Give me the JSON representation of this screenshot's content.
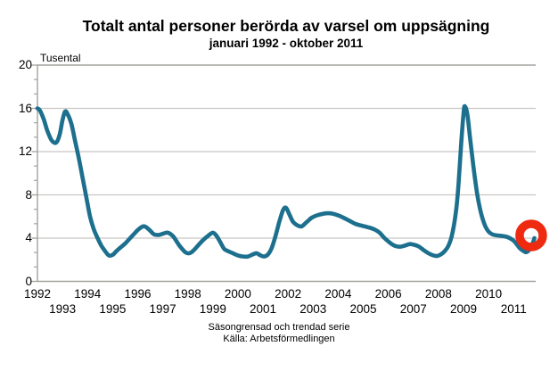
{
  "title": "Totalt antal personer berörda av varsel om uppsägning",
  "subtitle": "januari 1992 - oktober 2011",
  "unit_label": "Tusental",
  "footer": {
    "line1": "Säsongrensad och trendad serie",
    "line2": "Källa: Arbetsförmedlingen"
  },
  "colors": {
    "line": "#1d6f8e",
    "annotation": "#ee2a11",
    "grid": "#c9c7c3",
    "frame": "#a3a29e",
    "text": "#000000",
    "background": "#ffffff"
  },
  "chart_data": {
    "type": "line",
    "title": "Totalt antal personer berörda av varsel om uppsägning",
    "subtitle": "januari 1992 - oktober 2011",
    "ylabel": "Tusental",
    "xlabel": "",
    "xlim": [
      1992,
      2011.88
    ],
    "ylim": [
      0,
      20
    ],
    "y_ticks": [
      0,
      4,
      8,
      12,
      16,
      20
    ],
    "y_minor_ticks_per_interval": 2,
    "x_tick_years_row1": [
      1992,
      1994,
      1996,
      1998,
      2000,
      2002,
      2004,
      2006,
      2008,
      2010
    ],
    "x_tick_years_row2": [
      1993,
      1995,
      1997,
      1999,
      2001,
      2003,
      2005,
      2007,
      2009,
      2011
    ],
    "grid": "horizontal-major-only",
    "legend": "none",
    "series": [
      {
        "name": "Totalt antal personer berörda av varsel om uppsägning (tusental)",
        "points": [
          [
            1992.0,
            16.0
          ],
          [
            1992.1,
            15.8
          ],
          [
            1992.25,
            15.0
          ],
          [
            1992.4,
            13.9
          ],
          [
            1992.55,
            13.1
          ],
          [
            1992.7,
            12.8
          ],
          [
            1992.8,
            13.0
          ],
          [
            1992.9,
            13.7
          ],
          [
            1993.0,
            14.9
          ],
          [
            1993.1,
            15.7
          ],
          [
            1993.2,
            15.5
          ],
          [
            1993.35,
            14.6
          ],
          [
            1993.5,
            13.0
          ],
          [
            1993.65,
            11.4
          ],
          [
            1993.8,
            9.6
          ],
          [
            1993.95,
            7.8
          ],
          [
            1994.1,
            6.0
          ],
          [
            1994.25,
            4.8
          ],
          [
            1994.4,
            4.0
          ],
          [
            1994.55,
            3.3
          ],
          [
            1994.7,
            2.8
          ],
          [
            1994.85,
            2.4
          ],
          [
            1995.0,
            2.45
          ],
          [
            1995.15,
            2.8
          ],
          [
            1995.3,
            3.1
          ],
          [
            1995.5,
            3.5
          ],
          [
            1995.7,
            4.0
          ],
          [
            1995.9,
            4.5
          ],
          [
            1996.05,
            4.85
          ],
          [
            1996.25,
            5.1
          ],
          [
            1996.45,
            4.8
          ],
          [
            1996.65,
            4.35
          ],
          [
            1996.85,
            4.3
          ],
          [
            1997.0,
            4.4
          ],
          [
            1997.2,
            4.5
          ],
          [
            1997.4,
            4.2
          ],
          [
            1997.55,
            3.7
          ],
          [
            1997.7,
            3.2
          ],
          [
            1997.9,
            2.7
          ],
          [
            1998.05,
            2.6
          ],
          [
            1998.2,
            2.8
          ],
          [
            1998.4,
            3.3
          ],
          [
            1998.6,
            3.8
          ],
          [
            1998.8,
            4.2
          ],
          [
            1999.0,
            4.5
          ],
          [
            1999.15,
            4.2
          ],
          [
            1999.3,
            3.6
          ],
          [
            1999.45,
            3.0
          ],
          [
            1999.6,
            2.8
          ],
          [
            1999.8,
            2.6
          ],
          [
            2000.0,
            2.4
          ],
          [
            2000.2,
            2.3
          ],
          [
            2000.4,
            2.3
          ],
          [
            2000.6,
            2.5
          ],
          [
            2000.75,
            2.6
          ],
          [
            2000.9,
            2.4
          ],
          [
            2001.05,
            2.3
          ],
          [
            2001.2,
            2.5
          ],
          [
            2001.35,
            3.1
          ],
          [
            2001.5,
            4.2
          ],
          [
            2001.65,
            5.5
          ],
          [
            2001.8,
            6.6
          ],
          [
            2001.92,
            6.8
          ],
          [
            2002.05,
            6.2
          ],
          [
            2002.2,
            5.5
          ],
          [
            2002.4,
            5.15
          ],
          [
            2002.55,
            5.1
          ],
          [
            2002.75,
            5.5
          ],
          [
            2002.95,
            5.9
          ],
          [
            2003.15,
            6.1
          ],
          [
            2003.4,
            6.25
          ],
          [
            2003.6,
            6.3
          ],
          [
            2003.8,
            6.25
          ],
          [
            2004.0,
            6.1
          ],
          [
            2004.2,
            5.9
          ],
          [
            2004.45,
            5.6
          ],
          [
            2004.7,
            5.3
          ],
          [
            2004.95,
            5.15
          ],
          [
            2005.2,
            5.0
          ],
          [
            2005.45,
            4.8
          ],
          [
            2005.65,
            4.5
          ],
          [
            2005.85,
            4.0
          ],
          [
            2006.05,
            3.6
          ],
          [
            2006.25,
            3.3
          ],
          [
            2006.45,
            3.2
          ],
          [
            2006.65,
            3.3
          ],
          [
            2006.85,
            3.45
          ],
          [
            2007.0,
            3.4
          ],
          [
            2007.2,
            3.25
          ],
          [
            2007.4,
            2.9
          ],
          [
            2007.6,
            2.6
          ],
          [
            2007.8,
            2.4
          ],
          [
            2007.95,
            2.35
          ],
          [
            2008.1,
            2.5
          ],
          [
            2008.25,
            2.8
          ],
          [
            2008.4,
            3.3
          ],
          [
            2008.55,
            4.4
          ],
          [
            2008.7,
            6.5
          ],
          [
            2008.8,
            9.0
          ],
          [
            2008.9,
            12.5
          ],
          [
            2009.0,
            15.5
          ],
          [
            2009.05,
            16.2
          ],
          [
            2009.15,
            15.5
          ],
          [
            2009.25,
            13.5
          ],
          [
            2009.4,
            10.5
          ],
          [
            2009.55,
            8.0
          ],
          [
            2009.7,
            6.3
          ],
          [
            2009.85,
            5.2
          ],
          [
            2010.0,
            4.6
          ],
          [
            2010.15,
            4.35
          ],
          [
            2010.35,
            4.25
          ],
          [
            2010.55,
            4.2
          ],
          [
            2010.75,
            4.1
          ],
          [
            2010.95,
            3.85
          ],
          [
            2011.1,
            3.5
          ],
          [
            2011.25,
            3.05
          ],
          [
            2011.4,
            2.8
          ],
          [
            2011.5,
            2.7
          ],
          [
            2011.62,
            2.9
          ],
          [
            2011.72,
            3.3
          ],
          [
            2011.83,
            4.0
          ]
        ]
      }
    ],
    "annotation": {
      "type": "circle-highlight",
      "x": 2011.7,
      "y": 4.25,
      "note": "red ring highlighting the final upturn, oktober 2011"
    },
    "footnote1": "Säsongrensad och trendad serie",
    "footnote2": "Källa: Arbetsförmedlingen"
  }
}
